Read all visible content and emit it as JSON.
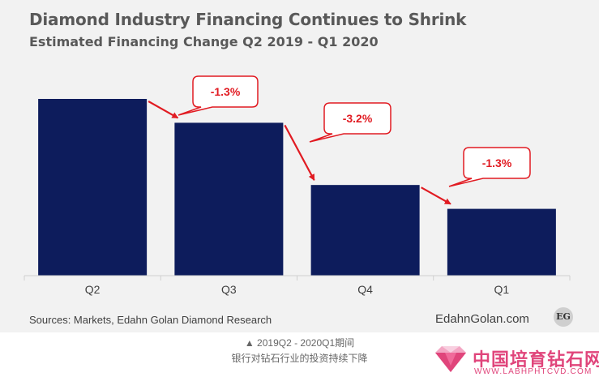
{
  "title": "Diamond Industry Financing Continues to Shrink",
  "subtitle": "Estimated Financing Change Q2 2019 - Q1 2020",
  "chart_data": {
    "type": "bar",
    "categories": [
      "Q2",
      "Q3",
      "Q4",
      "Q1"
    ],
    "values": [
      100,
      86.5,
      51.3,
      37.8
    ],
    "value_unit": "relative index (no y-axis shown)",
    "annotations": [
      "-1.3%",
      "-3.2%",
      "-1.3%"
    ],
    "bar_color": "#0d1c5c",
    "annotation_color": "#e11b22",
    "grid": false,
    "legend": "none"
  },
  "source": "Sources: Markets, Edahn Golan Diamond Research",
  "brand": "EdahnGolan.com",
  "brand_logo": "EG",
  "caption_line1": "▲ 2019Q2 - 2020Q1期间",
  "caption_line2": "银行对钻石行业的投资持续下降",
  "watermark": {
    "name": "中国培育钻石网",
    "url": "WWW.LABHPHTCVD.COM",
    "icon": "diamond-logo-icon"
  }
}
